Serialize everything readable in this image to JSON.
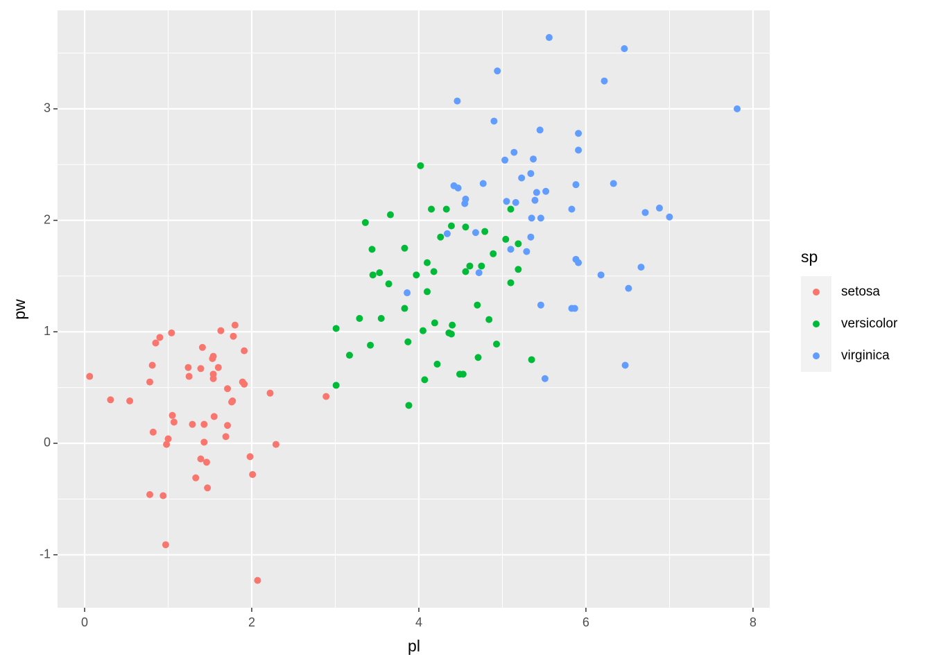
{
  "chart_data": {
    "type": "scatter",
    "x_label": "pl",
    "y_label": "pw",
    "legend_title": "sp",
    "legend": "right",
    "grid": true,
    "panel_color": "#ebebeb",
    "xlim": [
      -0.324,
      8.2
    ],
    "ylim": [
      -1.475,
      3.883
    ],
    "xticks": [
      0,
      2,
      4,
      6,
      8
    ],
    "yticks": [
      -1,
      0,
      1,
      2,
      3
    ],
    "x_minor_ticks": [
      1,
      3,
      5,
      7
    ],
    "y_minor_ticks": [
      -0.5,
      0.5,
      1.5,
      2.5,
      3.5
    ],
    "series": [
      {
        "name": "setosa",
        "color": "#F8766D",
        "x": [
          0.06,
          0.31,
          0.54,
          0.78,
          0.81,
          0.85,
          0.9,
          1.04,
          1.05,
          1.07,
          0.82,
          1.0,
          0.98,
          0.78,
          0.94,
          0.97,
          1.24,
          1.25,
          1.29,
          1.39,
          1.41,
          1.53,
          1.54,
          1.54,
          1.54,
          1.6,
          1.55,
          1.43,
          1.43,
          1.39,
          1.46,
          1.33,
          1.47,
          1.63,
          1.71,
          1.69,
          1.71,
          1.76,
          1.77,
          1.78,
          1.8,
          1.91,
          1.89,
          1.91,
          1.98,
          2.01,
          2.07,
          2.22,
          2.29,
          2.89
        ],
        "values": [
          0.6,
          0.39,
          0.38,
          0.55,
          0.7,
          0.9,
          0.95,
          0.99,
          0.25,
          0.19,
          0.1,
          0.04,
          -0.01,
          -0.46,
          -0.47,
          -0.91,
          0.68,
          0.6,
          0.17,
          0.67,
          0.86,
          0.76,
          0.78,
          0.62,
          0.58,
          0.68,
          0.24,
          0.17,
          0.01,
          -0.14,
          -0.17,
          -0.31,
          -0.4,
          1.01,
          0.49,
          0.06,
          0.16,
          0.37,
          0.38,
          0.96,
          1.06,
          0.83,
          0.55,
          0.53,
          -0.12,
          -0.28,
          -1.23,
          0.45,
          -0.01,
          0.42
        ]
      },
      {
        "name": "versicolor",
        "color": "#00BA38",
        "x": [
          3.01,
          3.01,
          3.17,
          3.29,
          3.36,
          3.42,
          3.44,
          3.45,
          3.53,
          3.55,
          3.66,
          3.64,
          3.83,
          3.83,
          3.87,
          3.88,
          3.97,
          4.02,
          4.05,
          4.07,
          4.1,
          4.1,
          4.15,
          4.18,
          4.19,
          4.22,
          4.26,
          4.33,
          4.36,
          4.39,
          4.39,
          4.4,
          4.49,
          4.53,
          4.56,
          4.56,
          4.61,
          4.7,
          4.71,
          4.75,
          4.79,
          4.84,
          4.89,
          4.93,
          5.04,
          5.1,
          5.1,
          5.19,
          5.19,
          5.35
        ],
        "values": [
          1.03,
          0.52,
          0.79,
          1.12,
          1.98,
          0.88,
          1.74,
          1.51,
          1.53,
          1.12,
          2.05,
          1.43,
          1.75,
          1.21,
          0.91,
          0.34,
          1.51,
          2.49,
          1.01,
          0.57,
          1.62,
          1.36,
          2.1,
          1.54,
          1.08,
          0.71,
          1.85,
          2.1,
          0.99,
          0.98,
          1.95,
          1.06,
          0.62,
          0.62,
          1.94,
          1.54,
          1.59,
          1.24,
          0.77,
          1.59,
          1.9,
          1.11,
          1.7,
          0.89,
          1.83,
          2.1,
          1.44,
          1.79,
          1.56,
          0.75
        ]
      },
      {
        "name": "virginica",
        "color": "#619CFF",
        "x": [
          3.86,
          4.34,
          4.42,
          4.46,
          4.47,
          4.55,
          4.56,
          4.68,
          4.72,
          4.77,
          4.9,
          4.94,
          5.03,
          5.05,
          5.1,
          5.14,
          5.16,
          5.23,
          5.29,
          5.34,
          5.35,
          5.34,
          5.37,
          5.39,
          5.41,
          5.45,
          5.46,
          5.46,
          5.52,
          5.51,
          5.56,
          5.83,
          5.83,
          5.866,
          5.88,
          5.88,
          5.91,
          5.91,
          5.91,
          6.18,
          6.22,
          6.33,
          6.46,
          6.47,
          6.51,
          6.66,
          6.71,
          6.88,
          7.0,
          7.81
        ],
        "values": [
          1.35,
          1.88,
          2.31,
          3.07,
          2.29,
          2.15,
          2.19,
          1.89,
          1.53,
          2.33,
          2.89,
          3.34,
          2.54,
          2.17,
          1.74,
          2.61,
          2.16,
          2.38,
          1.72,
          2.42,
          2.02,
          1.85,
          2.55,
          2.18,
          2.25,
          2.81,
          2.02,
          1.24,
          2.26,
          0.58,
          3.64,
          2.1,
          1.21,
          1.21,
          2.32,
          1.65,
          1.62,
          2.78,
          2.63,
          1.51,
          3.25,
          2.33,
          3.54,
          0.7,
          1.39,
          1.58,
          2.07,
          2.11,
          2.03,
          3.0
        ]
      }
    ]
  }
}
